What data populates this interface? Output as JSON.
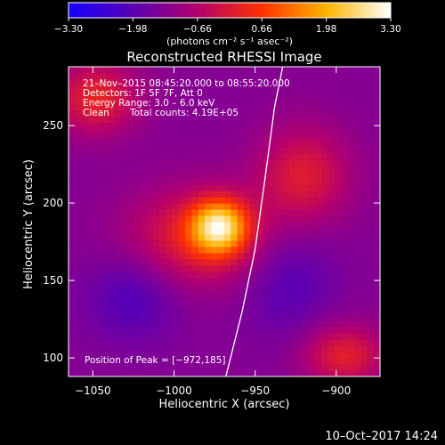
{
  "chart_data": {
    "type": "heatmap",
    "title": "Reconstructed RHESSI Image",
    "xlabel": "Heliocentric X (arcsec)",
    "ylabel": "Heliocentric Y (arcsec)",
    "xlim": [
      -1065,
      -873
    ],
    "ylim": [
      88,
      288
    ],
    "x_ticks": [
      -1050,
      -1000,
      -950,
      -900
    ],
    "x_tick_labels": [
      "−1050",
      "−1000",
      "−950",
      "−900"
    ],
    "y_ticks": [
      100,
      150,
      200,
      250
    ],
    "y_tick_labels": [
      "100",
      "150",
      "200",
      "250"
    ],
    "colorbar": {
      "min": -3.3,
      "max": 3.3,
      "ticks": [
        -3.3,
        -1.98,
        -0.66,
        0.66,
        1.98,
        3.3
      ],
      "tick_labels": [
        "−3.30",
        "−1.98",
        "−0.66",
        "0.66",
        "1.98",
        "3.30"
      ],
      "units_text": "(photons cm⁻² s⁻¹ asec⁻²)"
    },
    "colors": [
      "#1400ff",
      "#5a00b4",
      "#b4006e",
      "#ff3200",
      "#ffb400",
      "#ffffff"
    ],
    "peak": {
      "x": -972,
      "y": 185,
      "value": 3.3
    },
    "features": [
      {
        "x": -972,
        "y": 185,
        "value": 3.3,
        "sigma_x": 12,
        "sigma_y": 12
      },
      {
        "x": -985,
        "y": 178,
        "value": 1.6,
        "sigma_x": 30,
        "sigma_y": 22
      },
      {
        "x": -920,
        "y": 218,
        "value": 1.4,
        "sigma_x": 20,
        "sigma_y": 22
      },
      {
        "x": -1048,
        "y": 268,
        "value": 1.6,
        "sigma_x": 18,
        "sigma_y": 16
      },
      {
        "x": -895,
        "y": 102,
        "value": 1.5,
        "sigma_x": 18,
        "sigma_y": 14
      },
      {
        "x": -1025,
        "y": 140,
        "value": -0.8,
        "sigma_x": 20,
        "sigma_y": 20
      },
      {
        "x": -930,
        "y": 150,
        "value": -0.7,
        "sigma_x": 20,
        "sigma_y": 25
      }
    ],
    "limb_curve": [
      [
        -968,
        88
      ],
      [
        -958,
        130
      ],
      [
        -950,
        170
      ],
      [
        -944,
        215
      ],
      [
        -938,
        262
      ],
      [
        -933,
        288
      ]
    ],
    "annotations": [
      "21–Nov–2015 08:45:20.000 to 08:55:20.000",
      "Detectors: 1F 5F 7F, Att 0",
      "Energy Range: 3.0 – 6.0 keV",
      "Clean",
      "Total counts: 4.19E+05",
      "Position of Peak = [−972,185]"
    ]
  },
  "timestamp": "10–Oct–2017 14:24"
}
